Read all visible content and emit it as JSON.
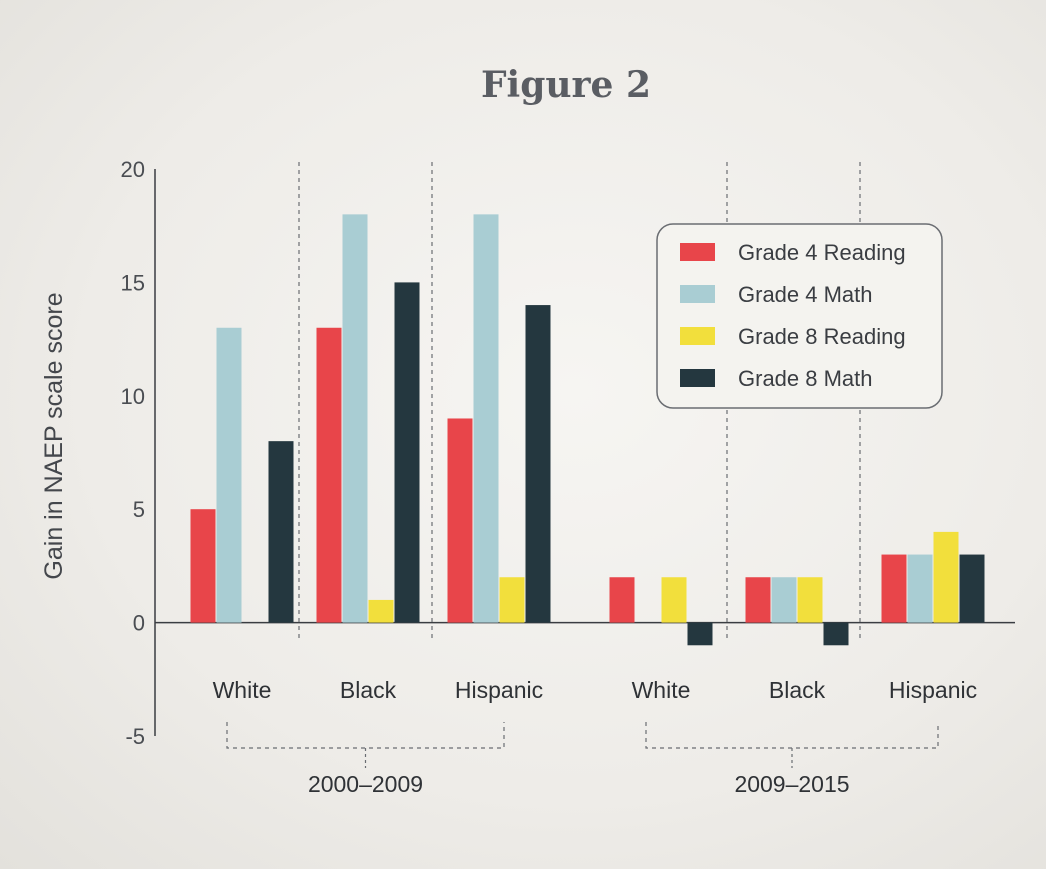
{
  "chart_data": {
    "type": "bar",
    "title": "Figure 2",
    "ylabel": "Gain in NAEP scale score",
    "ylim": [
      -5,
      20
    ],
    "yticks": [
      20,
      15,
      10,
      5,
      0,
      -5
    ],
    "grid": false,
    "legend_position": "top-right",
    "series": [
      {
        "name": "Grade 4 Reading",
        "color": "#e8454a"
      },
      {
        "name": "Grade 4 Math",
        "color": "#a9cdd3"
      },
      {
        "name": "Grade 8 Reading",
        "color": "#f2df3c"
      },
      {
        "name": "Grade 8 Math",
        "color": "#24373f"
      }
    ],
    "periods": [
      {
        "label": "2000–2009",
        "categories": [
          {
            "name": "White",
            "values": [
              5,
              13,
              0,
              8
            ]
          },
          {
            "name": "Black",
            "values": [
              13,
              18,
              1,
              15
            ]
          },
          {
            "name": "Hispanic",
            "values": [
              9,
              18,
              2,
              14
            ]
          }
        ]
      },
      {
        "label": "2009–2015",
        "categories": [
          {
            "name": "White",
            "values": [
              2,
              0,
              2,
              -1
            ]
          },
          {
            "name": "Black",
            "values": [
              2,
              2,
              2,
              -1
            ]
          },
          {
            "name": "Hispanic",
            "values": [
              3,
              3,
              4,
              3
            ]
          }
        ]
      }
    ]
  }
}
